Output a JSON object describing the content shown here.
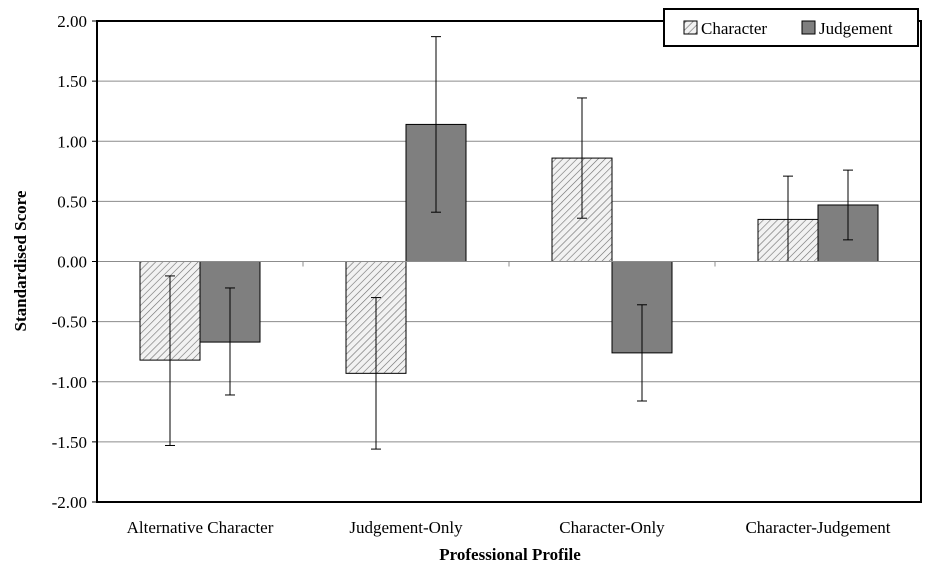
{
  "chart_data": {
    "type": "bar",
    "title": "",
    "xlabel": "Professional Profile",
    "ylabel": "Standardised Score",
    "ylim": [
      -2.0,
      2.0
    ],
    "yticks": [
      "2.00",
      "1.50",
      "1.00",
      "0.50",
      "0.00",
      "-0.50",
      "-1.00",
      "-1.50",
      "-2.00"
    ],
    "ytick_values": [
      2.0,
      1.5,
      1.0,
      0.5,
      0.0,
      -0.5,
      -1.0,
      -1.5,
      -2.0
    ],
    "grid": true,
    "legend_position": "top-right",
    "categories": [
      "Alternative Character",
      "Judgement-Only",
      "Character-Only",
      "Character-Judgement"
    ],
    "series": [
      {
        "name": "Character",
        "fill": "hatched",
        "color": "#d9d9d9",
        "values": [
          -0.82,
          -0.93,
          0.86,
          0.35
        ],
        "error_low": [
          -1.53,
          -1.56,
          0.36,
          0.0
        ],
        "error_high": [
          -0.12,
          -0.3,
          1.36,
          0.71
        ]
      },
      {
        "name": "Judgement",
        "fill": "solid",
        "color": "#7f7f7f",
        "values": [
          -0.67,
          1.14,
          -0.76,
          0.47
        ],
        "error_low": [
          -1.11,
          0.41,
          -1.16,
          0.18
        ],
        "error_high": [
          -0.22,
          1.87,
          -0.36,
          0.76
        ]
      }
    ]
  }
}
